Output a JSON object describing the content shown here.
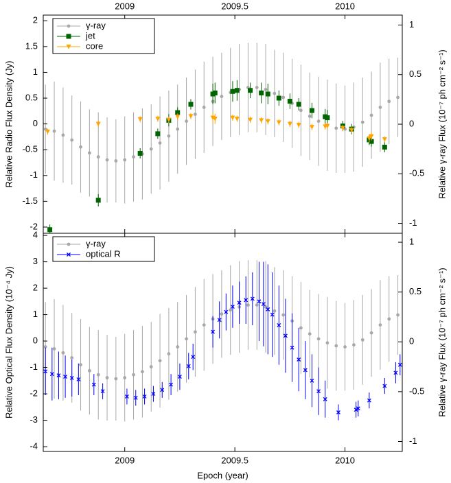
{
  "chart_data": [
    {
      "type": "scatter",
      "y_label": "Relative Radio Flux Density (Jy)",
      "y2_label": "Relative γ-ray Flux (10⁻⁷ ph cm⁻² s⁻¹)",
      "xtick_labels": "top",
      "legend": "upper left",
      "xlim": [
        2008.63,
        2010.26
      ],
      "xticks": [
        2009,
        2009.5,
        2010
      ],
      "ylim": [
        -2.12,
        2.11
      ],
      "yticks": [
        2,
        1.5,
        1,
        0.5,
        0,
        -0.5,
        -1,
        -1.5,
        -2
      ],
      "y2lim": [
        -1.1,
        1.1
      ],
      "y2ticks": [
        1,
        0.5,
        0,
        -0.5,
        -1
      ],
      "series": [
        {
          "name": "γ-ray",
          "color": "#a8a8a8",
          "marker": "circle",
          "axis": "y2",
          "x": [
            2008.64,
            2008.68,
            2008.72,
            2008.76,
            2008.8,
            2008.84,
            2008.88,
            2008.92,
            2008.96,
            2009.0,
            2009.04,
            2009.08,
            2009.12,
            2009.16,
            2009.2,
            2009.24,
            2009.28,
            2009.32,
            2009.36,
            2009.4,
            2009.44,
            2009.48,
            2009.52,
            2009.56,
            2009.6,
            2009.64,
            2009.68,
            2009.72,
            2009.76,
            2009.8,
            2009.84,
            2009.88,
            2009.92,
            2009.96,
            2010.0,
            2010.04,
            2010.08,
            2010.12,
            2010.16,
            2010.2,
            2010.24
          ],
          "values": [
            -0.05,
            -0.07,
            -0.11,
            -0.16,
            -0.23,
            -0.29,
            -0.33,
            -0.36,
            -0.37,
            -0.36,
            -0.33,
            -0.3,
            -0.25,
            -0.19,
            -0.12,
            -0.05,
            0.03,
            0.1,
            0.17,
            0.23,
            0.28,
            0.32,
            0.35,
            0.37,
            0.37,
            0.35,
            0.31,
            0.27,
            0.21,
            0.14,
            0.08,
            0.03,
            -0.01,
            -0.04,
            -0.05,
            -0.03,
            0.02,
            0.09,
            0.17,
            0.23,
            0.27
          ],
          "errors": [
            0.45,
            0.5,
            0.48,
            0.45,
            0.46,
            0.44,
            0.45,
            0.43,
            0.42,
            0.44,
            0.45,
            0.46,
            0.45,
            0.47,
            0.46,
            0.45,
            0.44,
            0.45,
            0.46,
            0.45,
            0.44,
            0.45,
            0.46,
            0.45,
            0.45,
            0.46,
            0.44,
            0.45,
            0.45,
            0.46,
            0.44,
            0.45,
            0.46,
            0.45,
            0.44,
            0.45,
            0.45,
            0.44,
            0.45,
            0.43,
            0.4
          ]
        },
        {
          "name": "jet",
          "color": "#006400",
          "marker": "square",
          "x": [
            2008.66,
            2008.88,
            2009.07,
            2009.15,
            2009.2,
            2009.24,
            2009.3,
            2009.4,
            2009.41,
            2009.49,
            2009.51,
            2009.57,
            2009.62,
            2009.65,
            2009.7,
            2009.75,
            2009.79,
            2009.85,
            2009.91,
            2009.92,
            2009.99,
            2010.03,
            2010.11,
            2010.12,
            2010.18
          ],
          "values": [
            -2.05,
            -1.48,
            -0.57,
            -0.19,
            0.07,
            0.22,
            0.38,
            0.58,
            0.6,
            0.63,
            0.65,
            0.65,
            0.6,
            0.58,
            0.5,
            0.44,
            0.38,
            0.26,
            0.14,
            0.12,
            -0.04,
            -0.1,
            -0.31,
            -0.34,
            -0.45
          ],
          "errors": [
            0.1,
            0.12,
            0.1,
            0.1,
            0.12,
            0.1,
            0.1,
            0.2,
            0.2,
            0.2,
            0.2,
            0.15,
            0.2,
            0.2,
            0.15,
            0.15,
            0.12,
            0.15,
            0.15,
            0.15,
            0.1,
            0.1,
            0.1,
            0.1,
            0.1
          ]
        },
        {
          "name": "core",
          "color": "#ffa500",
          "marker": "triangle-down",
          "x": [
            2008.65,
            2008.88,
            2009.07,
            2009.15,
            2009.2,
            2009.24,
            2009.3,
            2009.4,
            2009.41,
            2009.49,
            2009.51,
            2009.57,
            2009.62,
            2009.65,
            2009.7,
            2009.75,
            2009.79,
            2009.85,
            2009.91,
            2009.92,
            2009.99,
            2010.03,
            2010.11,
            2010.12,
            2010.18
          ],
          "values": [
            -0.15,
            0,
            0.09,
            0.1,
            0.08,
            0.14,
            0.15,
            0.12,
            0.1,
            0.12,
            0.1,
            0.08,
            0.07,
            0.05,
            0.03,
            0,
            -0.02,
            -0.06,
            -0.05,
            -0.04,
            -0.08,
            -0.12,
            -0.28,
            -0.24,
            -0.3
          ],
          "errors": [
            0.06,
            0.06,
            0.06,
            0.06,
            0.06,
            0.06,
            0.06,
            0.1,
            0.1,
            0.06,
            0.06,
            0.06,
            0.06,
            0.06,
            0.06,
            0.06,
            0.06,
            0.06,
            0.06,
            0.06,
            0.06,
            0.06,
            0.08,
            0.08,
            0.06
          ]
        }
      ]
    },
    {
      "type": "scatter",
      "x_label": "Epoch (year)",
      "y_label": "Relative Optical Flux Density (10⁻⁴ Jy)",
      "y2_label": "Relative γ-ray Flux (10⁻⁷ ph cm⁻² s⁻¹)",
      "xtick_labels": "bottom",
      "legend": "upper left",
      "xlim": [
        2008.63,
        2010.26
      ],
      "xticks": [
        2009,
        2009.5,
        2010
      ],
      "ylim": [
        -4.18,
        4.08
      ],
      "yticks": [
        4,
        3,
        2,
        1,
        0,
        -1,
        -2,
        -3,
        -4
      ],
      "y2lim": [
        -1.1,
        1.09
      ],
      "y2ticks": [
        1,
        0.5,
        0,
        -0.5,
        -1
      ],
      "series": [
        {
          "name": "γ-ray",
          "color": "#a8a8a8",
          "marker": "circle",
          "axis": "y2",
          "x": [
            2008.64,
            2008.68,
            2008.72,
            2008.76,
            2008.8,
            2008.84,
            2008.88,
            2008.92,
            2008.96,
            2009.0,
            2009.04,
            2009.08,
            2009.12,
            2009.16,
            2009.2,
            2009.24,
            2009.28,
            2009.32,
            2009.36,
            2009.4,
            2009.44,
            2009.48,
            2009.52,
            2009.56,
            2009.6,
            2009.64,
            2009.68,
            2009.72,
            2009.76,
            2009.8,
            2009.84,
            2009.88,
            2009.92,
            2009.96,
            2010.0,
            2010.04,
            2010.08,
            2010.12,
            2010.16,
            2010.2,
            2010.24
          ],
          "values": [
            -0.05,
            -0.07,
            -0.11,
            -0.16,
            -0.23,
            -0.29,
            -0.33,
            -0.36,
            -0.37,
            -0.36,
            -0.33,
            -0.3,
            -0.25,
            -0.19,
            -0.12,
            -0.05,
            0.03,
            0.1,
            0.17,
            0.23,
            0.28,
            0.32,
            0.35,
            0.37,
            0.37,
            0.35,
            0.31,
            0.27,
            0.21,
            0.14,
            0.08,
            0.03,
            -0.01,
            -0.04,
            -0.05,
            -0.03,
            0.02,
            0.09,
            0.17,
            0.23,
            0.27
          ],
          "errors": [
            0.45,
            0.5,
            0.48,
            0.45,
            0.46,
            0.44,
            0.45,
            0.43,
            0.42,
            0.44,
            0.45,
            0.46,
            0.45,
            0.47,
            0.46,
            0.45,
            0.44,
            0.45,
            0.46,
            0.45,
            0.44,
            0.45,
            0.46,
            0.45,
            0.45,
            0.46,
            0.44,
            0.45,
            0.45,
            0.46,
            0.44,
            0.45,
            0.46,
            0.45,
            0.44,
            0.45,
            0.45,
            0.44,
            0.45,
            0.43,
            0.4
          ]
        },
        {
          "name": "optical R",
          "color": "#0000ff",
          "marker": "x",
          "x": [
            2008.64,
            2008.67,
            2008.7,
            2008.73,
            2008.76,
            2008.79,
            2008.86,
            2008.9,
            2009.01,
            2009.05,
            2009.09,
            2009.13,
            2009.17,
            2009.21,
            2009.25,
            2009.29,
            2009.31,
            2009.4,
            2009.43,
            2009.46,
            2009.49,
            2009.52,
            2009.55,
            2009.58,
            2009.61,
            2009.63,
            2009.65,
            2009.67,
            2009.7,
            2009.73,
            2009.76,
            2009.79,
            2009.82,
            2009.85,
            2009.88,
            2009.91,
            2009.97,
            2010.05,
            2010.06,
            2010.11,
            2010.18,
            2010.23,
            2010.25
          ],
          "values": [
            -1.15,
            -1.25,
            -1.3,
            -1.35,
            -1.4,
            -1.45,
            -1.65,
            -1.9,
            -2.1,
            -2.15,
            -2.1,
            -2,
            -1.85,
            -1.65,
            -1.35,
            -0.95,
            -0.6,
            0.35,
            0.8,
            1.1,
            1.3,
            1.45,
            1.55,
            1.6,
            1.5,
            1.4,
            1.2,
            1,
            0.6,
            0.2,
            -0.25,
            -0.7,
            -1.1,
            -1.5,
            -1.9,
            -2.2,
            -2.7,
            -2.6,
            -2.55,
            -2.25,
            -1.7,
            -1.2,
            -0.9
          ],
          "errors": [
            0.9,
            1,
            0.9,
            0.8,
            0.7,
            0.6,
            0.4,
            0.3,
            0.3,
            0.3,
            0.3,
            0.3,
            0.3,
            0.4,
            0.5,
            0.5,
            0.5,
            0.6,
            0.7,
            0.7,
            0.8,
            0.8,
            0.9,
            1,
            1.5,
            1.6,
            1.7,
            1.6,
            1.5,
            1.4,
            1.3,
            1.2,
            1.1,
            1,
            0.9,
            0.7,
            0.3,
            0.3,
            0.3,
            0.3,
            0.3,
            0.4,
            0.4
          ]
        }
      ]
    }
  ]
}
